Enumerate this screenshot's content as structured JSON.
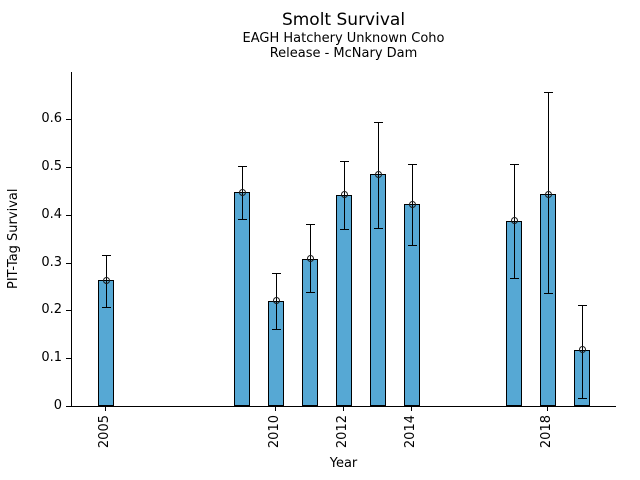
{
  "figure": {
    "background_color": "#ffffff",
    "text_color": "#000000"
  },
  "chart_data": {
    "type": "bar",
    "title": "Smolt Survival",
    "subtitle_line1": "EAGH Hatchery Unknown Coho",
    "subtitle_line2": "Release - McNary Dam",
    "xlabel": "Year",
    "ylabel": "PIT-Tag Survival",
    "xlim": [
      2004,
      2020
    ],
    "ylim": [
      0,
      0.7
    ],
    "grid": false,
    "legend": false,
    "bar_color": "#56A8D4",
    "bar_edge_color": "#000000",
    "error_bar_color": "#000000",
    "marker_style": "open-circle",
    "x_ticks": [
      {
        "value": 2005,
        "label": "2005"
      },
      {
        "value": 2010,
        "label": "2010"
      },
      {
        "value": 2012,
        "label": "2012"
      },
      {
        "value": 2014,
        "label": "2014"
      },
      {
        "value": 2018,
        "label": "2018"
      }
    ],
    "y_ticks": [
      {
        "value": 0,
        "label": "0"
      },
      {
        "value": 0.1,
        "label": "0.1"
      },
      {
        "value": 0.2,
        "label": "0.2"
      },
      {
        "value": 0.3,
        "label": "0.3"
      },
      {
        "value": 0.4,
        "label": "0.4"
      },
      {
        "value": 0.5,
        "label": "0.5"
      },
      {
        "value": 0.6,
        "label": "0.6"
      }
    ],
    "bars": [
      {
        "year": 2005,
        "value": 0.263,
        "err_low": 0.208,
        "err_high": 0.316
      },
      {
        "year": 2009,
        "value": 0.447,
        "err_low": 0.392,
        "err_high": 0.502
      },
      {
        "year": 2010,
        "value": 0.22,
        "err_low": 0.161,
        "err_high": 0.279
      },
      {
        "year": 2011,
        "value": 0.308,
        "err_low": 0.239,
        "err_high": 0.381
      },
      {
        "year": 2012,
        "value": 0.442,
        "err_low": 0.371,
        "err_high": 0.512
      },
      {
        "year": 2013,
        "value": 0.485,
        "err_low": 0.373,
        "err_high": 0.594
      },
      {
        "year": 2014,
        "value": 0.422,
        "err_low": 0.337,
        "err_high": 0.507
      },
      {
        "year": 2017,
        "value": 0.388,
        "err_low": 0.267,
        "err_high": 0.506
      },
      {
        "year": 2018,
        "value": 0.443,
        "err_low": 0.236,
        "err_high": 0.656
      },
      {
        "year": 2019,
        "value": 0.118,
        "err_low": 0.016,
        "err_high": 0.212
      }
    ]
  }
}
